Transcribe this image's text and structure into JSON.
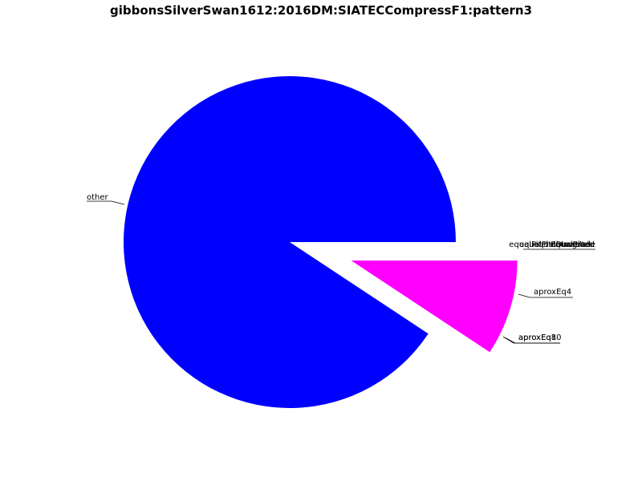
{
  "chart_data": {
    "type": "pie",
    "title": "gibbonsSilverSwan1612:2016DM:SIATECCompressF1:pattern3",
    "slices": [
      {
        "label": "other",
        "value": 0.907,
        "color": "#0000ff",
        "explode": false
      },
      {
        "label": "aproxEq4",
        "value": 0.093,
        "color": "#ff00ff",
        "explode": true
      }
    ],
    "overlapping_labels": [
      {
        "label": "aproxEq10",
        "value": 0
      },
      {
        "label": "aproxEq8",
        "value": 0
      },
      {
        "label": "equalPitchRetrograde",
        "value": 0
      },
      {
        "label": "equalPitchInverted",
        "value": 0
      },
      {
        "label": "equalPitch",
        "value": 0
      },
      {
        "label": "equalDuration",
        "value": 0
      }
    ]
  }
}
